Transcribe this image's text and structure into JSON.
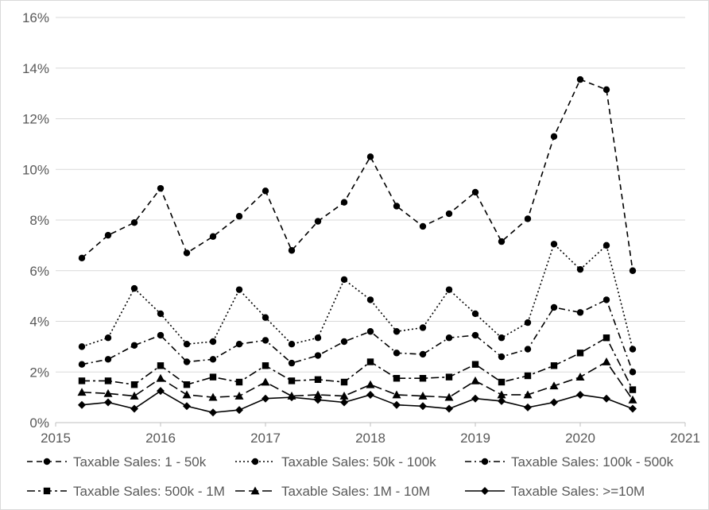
{
  "chart_data": {
    "type": "line",
    "title": "",
    "xlabel": "",
    "ylabel": "",
    "xlim": [
      2015,
      2021
    ],
    "ylim": [
      0,
      16
    ],
    "x_ticks": [
      "2015",
      "2016",
      "2017",
      "2018",
      "2019",
      "2020",
      "2021"
    ],
    "y_ticks": [
      "0%",
      "2%",
      "4%",
      "6%",
      "8%",
      "10%",
      "12%",
      "14%",
      "16%"
    ],
    "y_unit": "percent",
    "grid": "horizontal",
    "legend_position": "bottom",
    "x": [
      2015.25,
      2015.5,
      2015.75,
      2016.0,
      2016.25,
      2016.5,
      2016.75,
      2017.0,
      2017.25,
      2017.5,
      2017.75,
      2018.0,
      2018.25,
      2018.5,
      2018.75,
      2019.0,
      2019.25,
      2019.5,
      2019.75,
      2020.0,
      2020.25,
      2020.5
    ],
    "series": [
      {
        "name": "Taxable Sales: 1 - 50k",
        "line_style": "dashed",
        "marker": "circle",
        "values": [
          6.5,
          7.4,
          7.9,
          9.25,
          6.7,
          7.35,
          8.15,
          9.15,
          6.8,
          7.95,
          8.7,
          10.5,
          8.55,
          7.75,
          8.25,
          9.1,
          7.15,
          8.05,
          11.3,
          13.55,
          13.15,
          6.0
        ]
      },
      {
        "name": "Taxable Sales: 50k - 100k",
        "line_style": "dotted",
        "marker": "circle",
        "values": [
          3.0,
          3.35,
          5.3,
          4.3,
          3.1,
          3.2,
          5.25,
          4.15,
          3.1,
          3.35,
          5.65,
          4.85,
          3.6,
          3.75,
          5.25,
          4.3,
          3.35,
          3.95,
          7.05,
          6.05,
          7.0,
          2.9
        ]
      },
      {
        "name": "Taxable Sales: 100k - 500k",
        "line_style": "dashdot",
        "marker": "circle",
        "values": [
          2.3,
          2.5,
          3.05,
          3.45,
          2.4,
          2.5,
          3.1,
          3.25,
          2.35,
          2.65,
          3.2,
          3.6,
          2.75,
          2.7,
          3.35,
          3.45,
          2.6,
          2.9,
          4.55,
          4.35,
          4.85,
          2.0
        ]
      },
      {
        "name": "Taxable Sales: 500k - 1M",
        "line_style": "longdash-dot",
        "marker": "square",
        "values": [
          1.65,
          1.65,
          1.5,
          2.25,
          1.5,
          1.8,
          1.6,
          2.25,
          1.65,
          1.7,
          1.6,
          2.4,
          1.75,
          1.75,
          1.8,
          2.3,
          1.6,
          1.85,
          2.25,
          2.75,
          3.35,
          1.3
        ]
      },
      {
        "name": "Taxable Sales: 1M - 10M",
        "line_style": "longdash",
        "marker": "triangle",
        "values": [
          1.2,
          1.15,
          1.05,
          1.75,
          1.1,
          1.0,
          1.05,
          1.6,
          1.05,
          1.1,
          1.05,
          1.5,
          1.1,
          1.05,
          1.0,
          1.65,
          1.1,
          1.1,
          1.45,
          1.8,
          2.4,
          0.9
        ]
      },
      {
        "name": "Taxable Sales: >=10M",
        "line_style": "solid",
        "marker": "diamond",
        "values": [
          0.7,
          0.8,
          0.55,
          1.25,
          0.65,
          0.4,
          0.5,
          0.95,
          1.0,
          0.9,
          0.8,
          1.1,
          0.7,
          0.65,
          0.55,
          0.95,
          0.85,
          0.6,
          0.8,
          1.1,
          0.95,
          0.55
        ]
      }
    ]
  }
}
